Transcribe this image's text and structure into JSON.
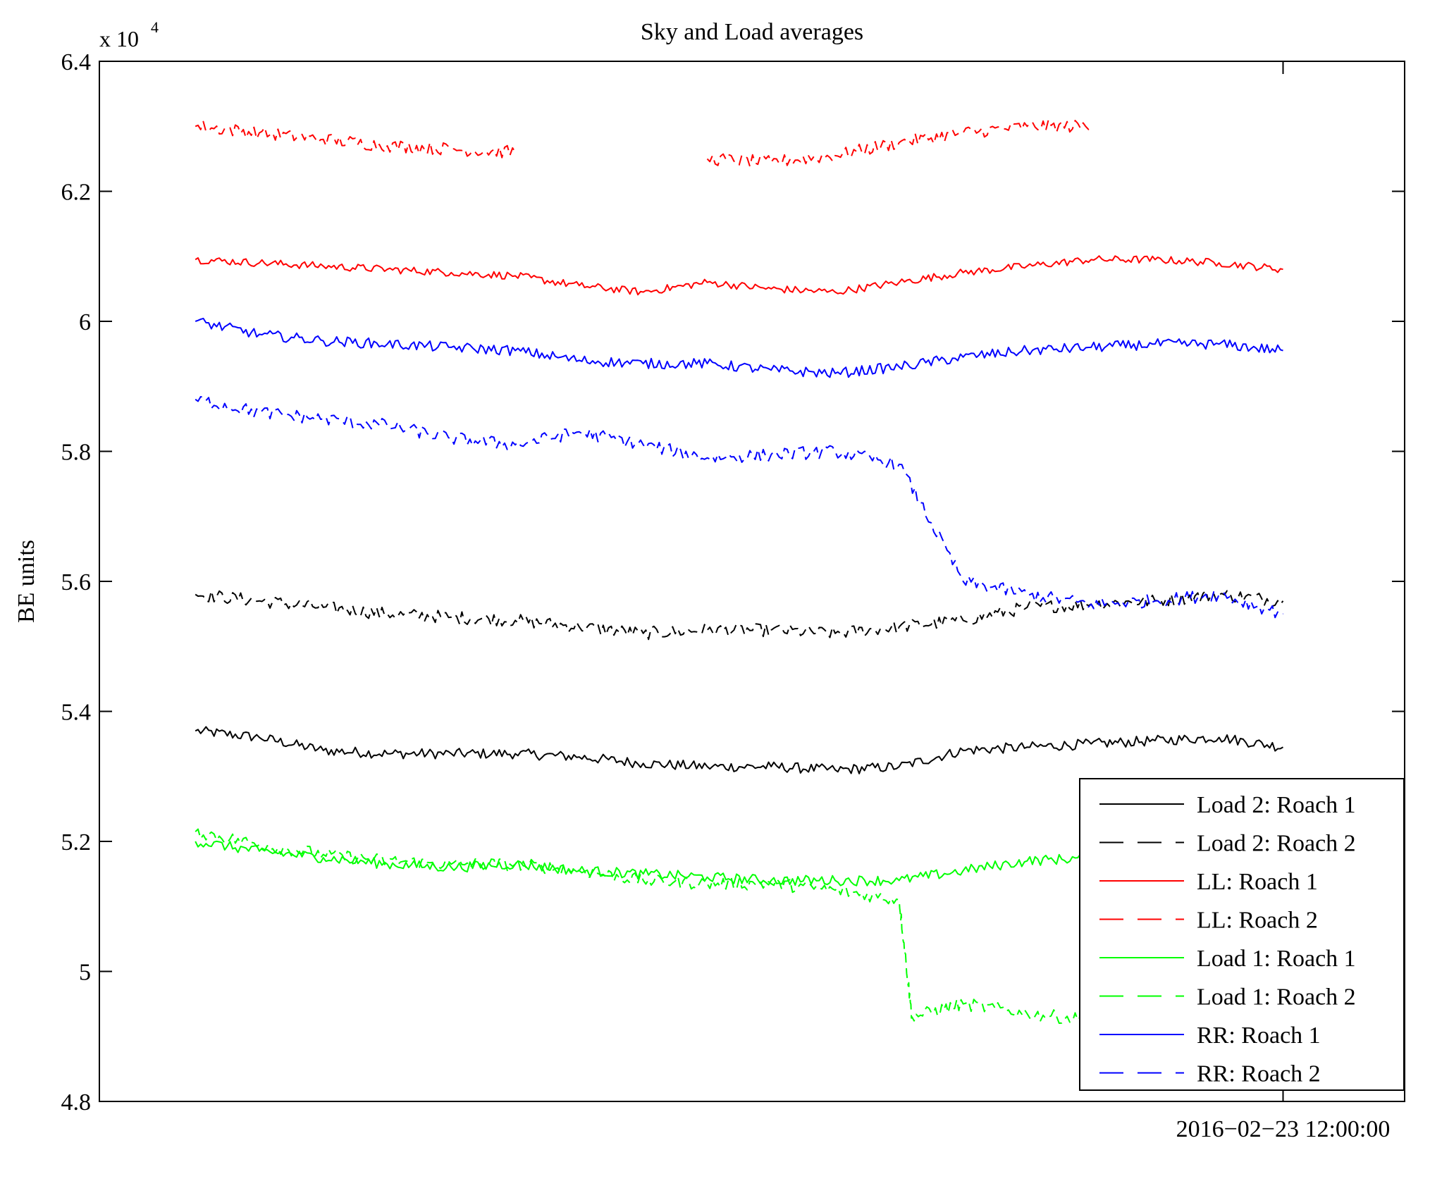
{
  "chart_data": {
    "type": "line",
    "title": "Sky and Load averages",
    "xlabel": "",
    "ylabel": "BE units",
    "y_multiplier_label": "x 10",
    "y_multiplier_exponent": "4",
    "ylim": [
      4.8,
      6.4
    ],
    "yticks": [
      4.8,
      5,
      5.2,
      5.4,
      5.6,
      5.8,
      6,
      6.2,
      6.4
    ],
    "ytick_labels": [
      "4.8",
      "5",
      "5.2",
      "5.4",
      "5.6",
      "5.8",
      "6",
      "6.2",
      "6.4"
    ],
    "xlim": [
      -0.925,
      0.095
    ],
    "xtick_values": [
      0
    ],
    "xtick_labels": [
      "2016−02−23 12:00:00"
    ],
    "x_unit": "days relative to 2016-02-23 12:00:00",
    "legend_position": "bottom-right",
    "grid": false,
    "series": [
      {
        "name": "Load 2: Roach 1",
        "color": "#000000",
        "dash": "solid",
        "x": [
          -0.85,
          -0.8,
          -0.75,
          -0.7,
          -0.65,
          -0.6,
          -0.55,
          -0.5,
          -0.45,
          -0.4,
          -0.35,
          -0.3,
          -0.25,
          -0.2,
          -0.15,
          -0.1,
          -0.05,
          0.0
        ],
        "y": [
          5.37,
          5.36,
          5.34,
          5.335,
          5.335,
          5.335,
          5.33,
          5.32,
          5.315,
          5.315,
          5.31,
          5.315,
          5.34,
          5.345,
          5.35,
          5.355,
          5.36,
          5.345
        ],
        "noise": 0.008
      },
      {
        "name": "Load 2: Roach 2",
        "color": "#000000",
        "dash": "dashed",
        "x": [
          -0.85,
          -0.8,
          -0.75,
          -0.7,
          -0.65,
          -0.6,
          -0.55,
          -0.5,
          -0.45,
          -0.4,
          -0.35,
          -0.3,
          -0.25,
          -0.2,
          -0.15,
          -0.1,
          -0.05,
          0.0
        ],
        "y": [
          5.58,
          5.57,
          5.56,
          5.55,
          5.545,
          5.54,
          5.53,
          5.52,
          5.525,
          5.525,
          5.52,
          5.53,
          5.54,
          5.56,
          5.565,
          5.57,
          5.58,
          5.57
        ],
        "noise": 0.01
      },
      {
        "name": "LL: Roach 1",
        "color": "#ff0000",
        "dash": "solid",
        "x": [
          -0.85,
          -0.8,
          -0.75,
          -0.7,
          -0.65,
          -0.6,
          -0.55,
          -0.5,
          -0.45,
          -0.4,
          -0.35,
          -0.3,
          -0.25,
          -0.2,
          -0.15,
          -0.1,
          -0.05,
          0.0
        ],
        "y": [
          6.095,
          6.09,
          6.085,
          6.08,
          6.075,
          6.07,
          6.055,
          6.045,
          6.06,
          6.05,
          6.045,
          6.06,
          6.075,
          6.085,
          6.095,
          6.095,
          6.09,
          6.08
        ],
        "noise": 0.006
      },
      {
        "name": "LL: Roach 2",
        "color": "#ff0000",
        "dash": "dashed",
        "x": [
          -0.85,
          -0.8,
          -0.75,
          -0.7,
          -0.65,
          -0.6,
          -0.55,
          -0.5,
          -0.45,
          -0.4,
          -0.35,
          -0.3,
          -0.25,
          -0.2,
          -0.15,
          -0.1,
          -0.05,
          0.0
        ],
        "y": [
          6.3,
          6.29,
          6.28,
          6.27,
          6.265,
          6.26,
          null,
          null,
          6.25,
          6.245,
          6.255,
          6.275,
          6.29,
          6.3,
          6.3,
          null,
          null,
          null
        ],
        "noise": 0.01
      },
      {
        "name": "Load 1: Roach 1",
        "color": "#00ff00",
        "dash": "solid",
        "x": [
          -0.85,
          -0.8,
          -0.75,
          -0.7,
          -0.65,
          -0.6,
          -0.55,
          -0.5,
          -0.45,
          -0.4,
          -0.35,
          -0.3,
          -0.25,
          -0.2,
          -0.15
        ],
        "y": [
          5.2,
          5.185,
          5.175,
          5.165,
          5.16,
          5.165,
          5.155,
          5.15,
          5.145,
          5.14,
          5.14,
          5.14,
          5.155,
          5.17,
          5.175
        ],
        "noise": 0.008
      },
      {
        "name": "Load 1: Roach 2",
        "color": "#00ff00",
        "dash": "dashed",
        "x": [
          -0.85,
          -0.8,
          -0.75,
          -0.7,
          -0.65,
          -0.6,
          -0.55,
          -0.5,
          -0.45,
          -0.4,
          -0.35,
          -0.3,
          -0.29,
          -0.25,
          -0.2,
          -0.15
        ],
        "y": [
          5.215,
          5.195,
          5.18,
          5.17,
          5.165,
          5.165,
          5.155,
          5.14,
          5.135,
          5.135,
          5.125,
          5.11,
          4.93,
          4.95,
          4.935,
          4.925
        ],
        "noise": 0.01
      },
      {
        "name": "RR: Roach 1",
        "color": "#0000ff",
        "dash": "solid",
        "x": [
          -0.85,
          -0.8,
          -0.75,
          -0.7,
          -0.65,
          -0.6,
          -0.55,
          -0.5,
          -0.45,
          -0.4,
          -0.35,
          -0.3,
          -0.25,
          -0.2,
          -0.15,
          -0.1,
          -0.05,
          0.0
        ],
        "y": [
          6.0,
          5.98,
          5.97,
          5.965,
          5.96,
          5.955,
          5.94,
          5.935,
          5.935,
          5.925,
          5.92,
          5.93,
          5.945,
          5.955,
          5.96,
          5.965,
          5.965,
          5.955
        ],
        "noise": 0.008
      },
      {
        "name": "RR: Roach 2",
        "color": "#0000ff",
        "dash": "dashed",
        "x": [
          -0.85,
          -0.8,
          -0.75,
          -0.7,
          -0.65,
          -0.6,
          -0.55,
          -0.5,
          -0.45,
          -0.4,
          -0.35,
          -0.3,
          -0.25,
          -0.2,
          -0.15,
          -0.1,
          -0.05,
          0.0
        ],
        "y": [
          5.88,
          5.86,
          5.85,
          5.84,
          5.82,
          5.81,
          5.83,
          5.81,
          5.79,
          5.795,
          5.8,
          5.78,
          5.6,
          5.58,
          5.565,
          5.57,
          5.58,
          5.55
        ],
        "noise": 0.01
      }
    ]
  }
}
